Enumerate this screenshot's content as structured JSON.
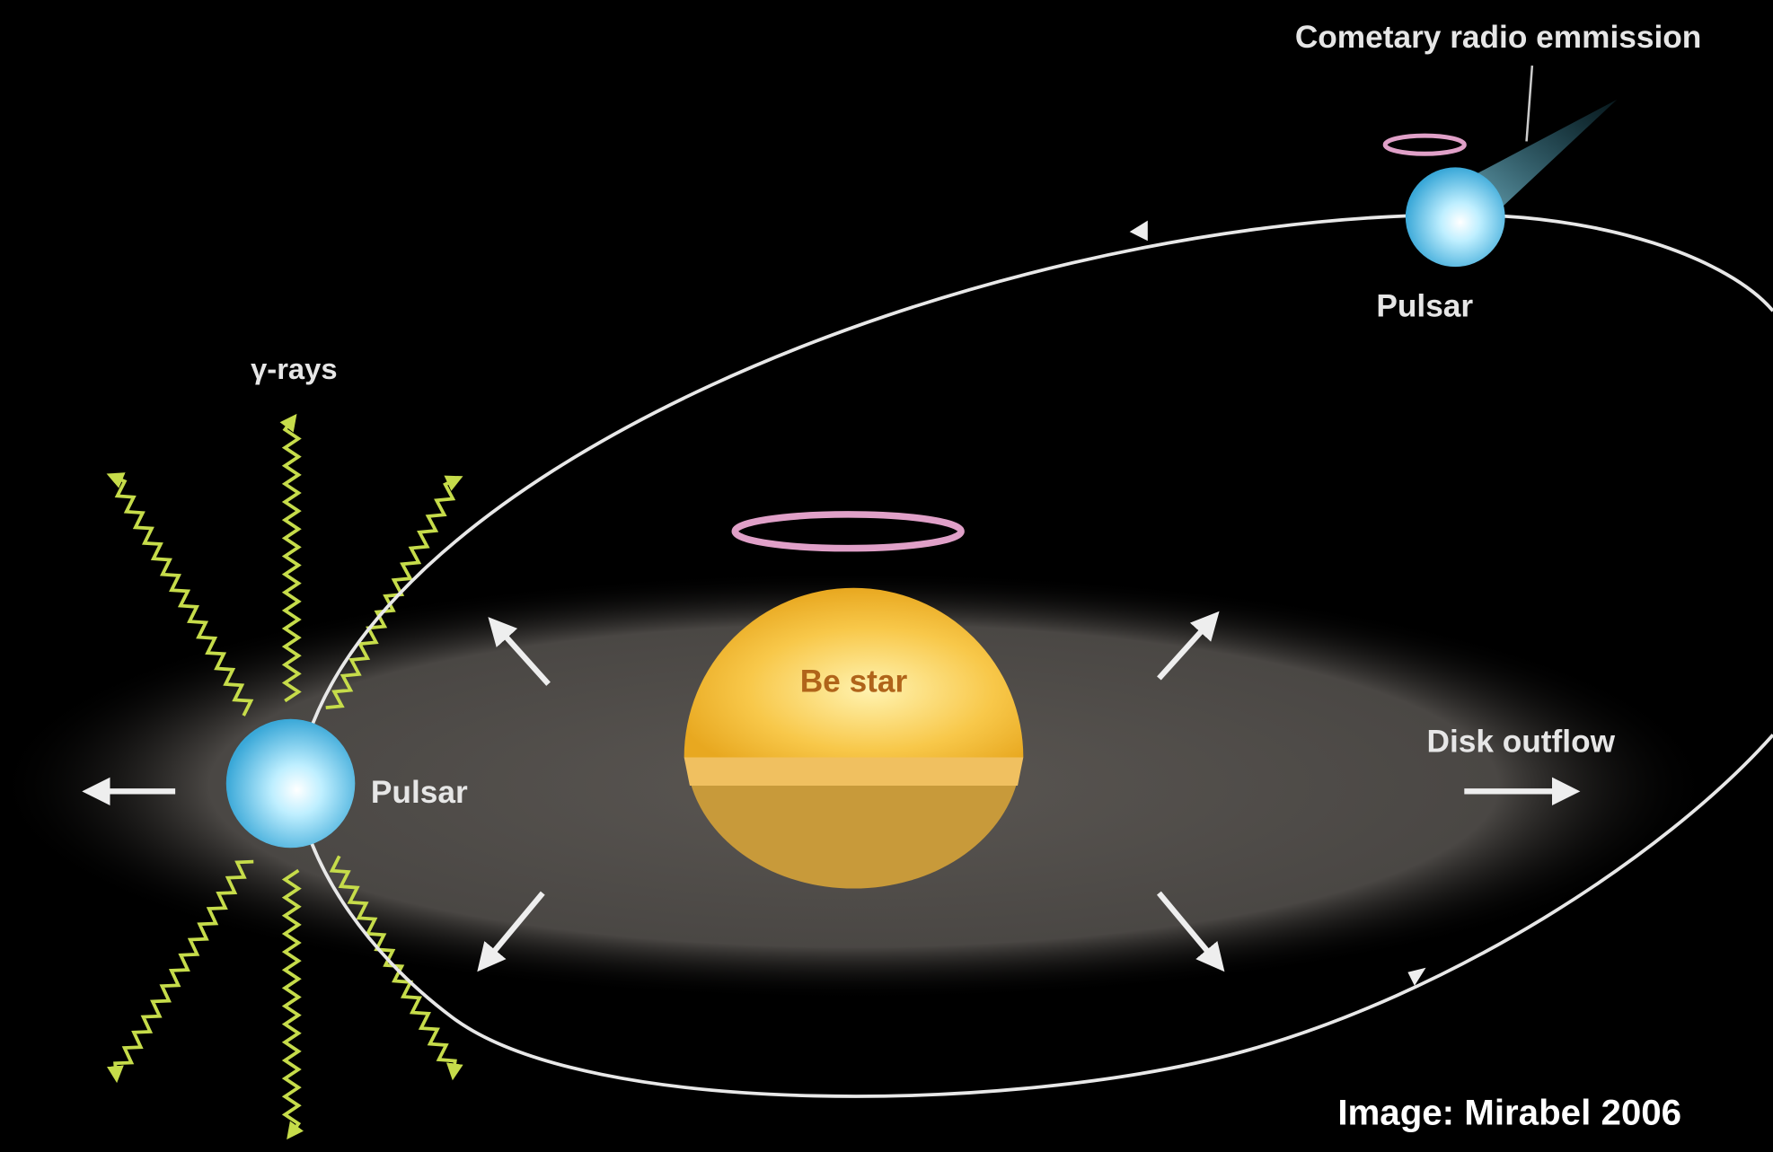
{
  "labels": {
    "cometary": "Cometary radio emmission",
    "pulsar_top": "Pulsar",
    "gamma": "γ-rays",
    "be_star": "Be star",
    "pulsar_left": "Pulsar",
    "disk_outflow": "Disk outflow"
  },
  "credit": "Image: Mirabel 2006"
}
